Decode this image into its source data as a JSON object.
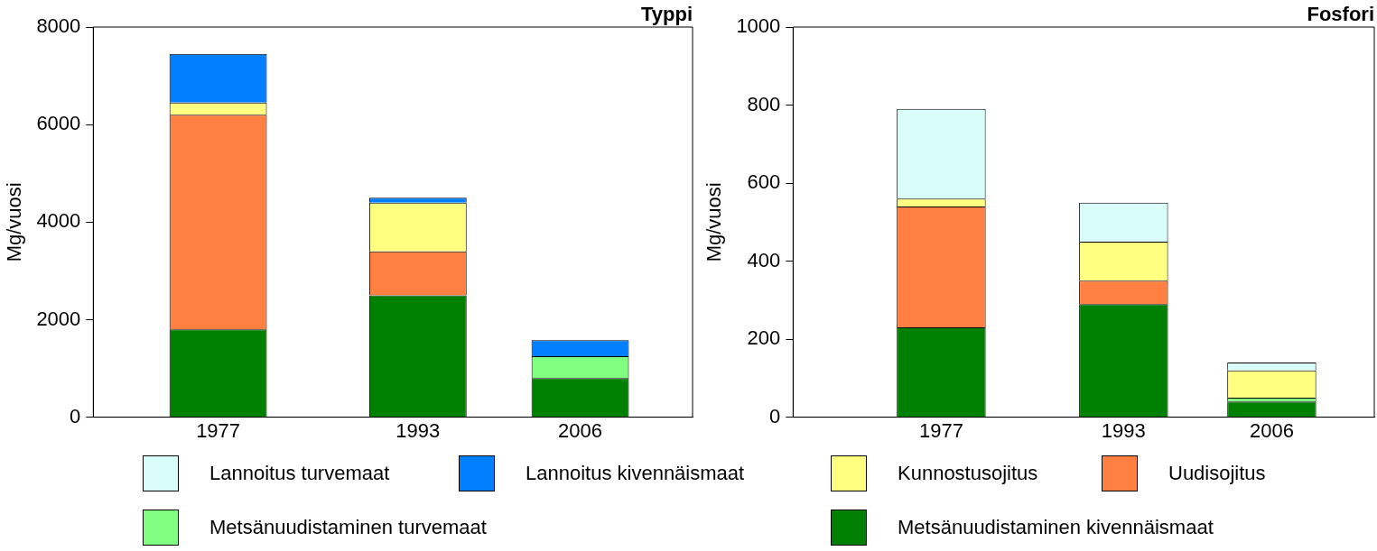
{
  "chart_data": [
    {
      "type": "bar",
      "title": "Typpi",
      "ylabel": "Mg/vuosi",
      "x": [
        1977,
        1993,
        2006
      ],
      "xlim": [
        1967,
        2015
      ],
      "xticks": [
        1977,
        1993,
        2006
      ],
      "ylim": [
        0,
        8000
      ],
      "yticks": [
        0,
        2000,
        4000,
        6000,
        8000
      ],
      "stacked": true,
      "legend": "bottom",
      "series": [
        {
          "name": "Metsänuudistaminen kivennäismaat",
          "color": "#008000",
          "values": [
            1800,
            2500,
            800
          ]
        },
        {
          "name": "Metsänuudistaminen turvemaat",
          "color": "#80ff80",
          "values": [
            null,
            null,
            450
          ]
        },
        {
          "name": "Uudisojitus",
          "color": "#ff8040",
          "values": [
            4400,
            900,
            null
          ]
        },
        {
          "name": "Kunnostusojitus",
          "color": "#ffff80",
          "values": [
            250,
            1000,
            null
          ]
        },
        {
          "name": "Lannoitus kivennäismaat",
          "color": "#0080ff",
          "values": [
            1000,
            100,
            330
          ]
        }
      ]
    },
    {
      "type": "bar",
      "title": "Fosfori",
      "ylabel": "Mg/vuosi",
      "x": [
        1977,
        1993,
        2006
      ],
      "xlim": [
        1964,
        2015
      ],
      "xticks": [
        1977,
        1993,
        2006
      ],
      "ylim": [
        0,
        1000
      ],
      "yticks": [
        0,
        200,
        400,
        600,
        800,
        1000
      ],
      "stacked": true,
      "legend": "bottom",
      "series": [
        {
          "name": "Metsänuudistaminen kivennäismaat",
          "color": "#008000",
          "values": [
            230,
            290,
            40
          ]
        },
        {
          "name": "Metsänuudistaminen turvemaat",
          "color": "#80ff80",
          "values": [
            null,
            null,
            10
          ]
        },
        {
          "name": "Uudisojitus",
          "color": "#ff8040",
          "values": [
            310,
            60,
            null
          ]
        },
        {
          "name": "Kunnostusojitus",
          "color": "#ffff80",
          "values": [
            20,
            100,
            70
          ]
        },
        {
          "name": "Lannoitus turvemaat",
          "color": "#d9fdf9",
          "values": [
            230,
            100,
            20
          ]
        }
      ]
    }
  ]
}
